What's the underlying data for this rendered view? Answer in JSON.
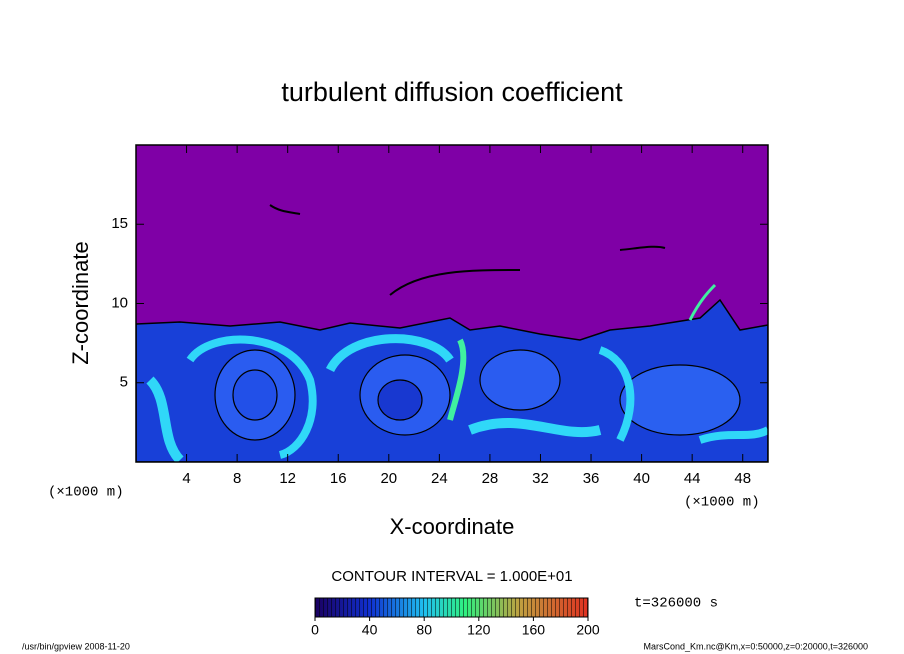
{
  "chart_data": {
    "type": "contour",
    "title": "turbulent diffusion coefficient",
    "xlabel": "X-coordinate",
    "ylabel": "Z-coordinate",
    "x_units": "(×1000 m)",
    "y_units": "(×1000 m)",
    "xlim": [
      0,
      50
    ],
    "xticks": [
      4,
      8,
      12,
      16,
      20,
      24,
      28,
      32,
      36,
      40,
      44,
      48
    ],
    "ylim": [
      0,
      20
    ],
    "yticks": [
      5,
      10,
      15
    ],
    "contour_interval": "CONTOUR INTERVAL = 1.000E+01",
    "time_label": "t=326000 s",
    "colorbar": {
      "lim": [
        0,
        200
      ],
      "ticks": [
        0,
        40,
        80,
        120,
        160,
        200
      ]
    },
    "footer_left": "/usr/bin/gpview  2008-11-20",
    "footer_right": "MarsCond_Km.nc@Km,x=0:50000,z=0:20000,t=326000"
  }
}
